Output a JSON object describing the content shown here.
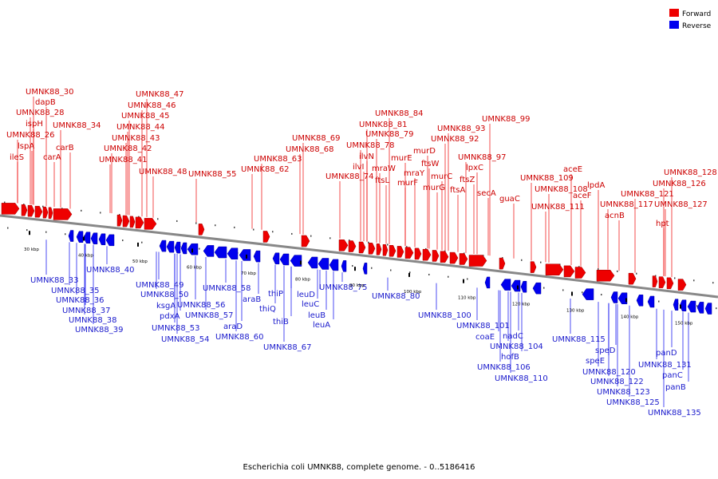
{
  "caption": "Escherichia coli UMNK88, complete genome. - 0..5186416",
  "legend": {
    "forward": {
      "label": "Forward",
      "color": "#ee0000"
    },
    "reverse": {
      "label": "Reverse",
      "color": "#0000ee"
    }
  },
  "scale_labels": [
    "30 kbp",
    "40 kbp",
    "50 kbp",
    "60 kbp",
    "70 kbp",
    "80 kbp",
    "90 kbp",
    "100 kbp",
    "110 kbp",
    "120 kbp",
    "130 kbp",
    "140 kbp",
    "150 kbp"
  ],
  "forward_labels": [
    "UMNK88_30",
    "dapB",
    "UMNK88_28",
    "ispH",
    "UMNK88_26",
    "lspA",
    "ileS",
    "carA",
    "carB",
    "UMNK88_34",
    "UMNK88_47",
    "UMNK88_46",
    "UMNK88_45",
    "UMNK88_44",
    "UMNK88_43",
    "UMNK88_42",
    "UMNK88_41",
    "UMNK88_48",
    "UMNK88_55",
    "UMNK88_69",
    "UMNK88_68",
    "UMNK88_63",
    "UMNK88_62",
    "UMNK88_84",
    "UMNK88_81",
    "UMNK88_79",
    "UMNK88_78",
    "ilvN",
    "ilvI",
    "UMNK88_74",
    "mraW",
    "ftsL",
    "murE",
    "murF",
    "mraY",
    "murD",
    "ftsW",
    "murC",
    "murG",
    "UMNK88_99",
    "UMNK88_93",
    "UMNK88_92",
    "UMNK88_97",
    "lpxC",
    "ftsZ",
    "ftsA",
    "secA",
    "guaC",
    "aceE",
    "UMNK88_109",
    "UMNK88_108",
    "aceF",
    "lpdA",
    "UMNK88_111",
    "UMNK88_128",
    "UMNK88_126",
    "UMNK88_121",
    "UMNK88_117",
    "UMNK88_127",
    "acnB",
    "hpt"
  ],
  "reverse_labels": [
    "UMNK88_33",
    "UMNK88_35",
    "UMNK88_36",
    "UMNK88_37",
    "UMNK88_38",
    "UMNK88_39",
    "UMNK88_40",
    "UMNK88_49",
    "UMNK88_50",
    "ksgA",
    "pdxA",
    "UMNK88_53",
    "UMNK88_54",
    "UMNK88_56",
    "UMNK88_57",
    "UMNK88_58",
    "araB",
    "araD",
    "UMNK88_60",
    "thiP",
    "thiQ",
    "thiB",
    "UMNK88_67",
    "leuD",
    "leuC",
    "leuB",
    "leuA",
    "UMNK88_75",
    "UMNK88_80",
    "UMNK88_100",
    "UMNK88_101",
    "coaE",
    "nadC",
    "UMNK88_104",
    "hofB",
    "UMNK88_106",
    "UMNK88_110",
    "UMNK88_115",
    "speD",
    "speE",
    "UMNK88_120",
    "UMNK88_122",
    "UMNK88_123",
    "UMNK88_125",
    "panD",
    "UMNK88_131",
    "panC",
    "panB",
    "UMNK88_135"
  ]
}
